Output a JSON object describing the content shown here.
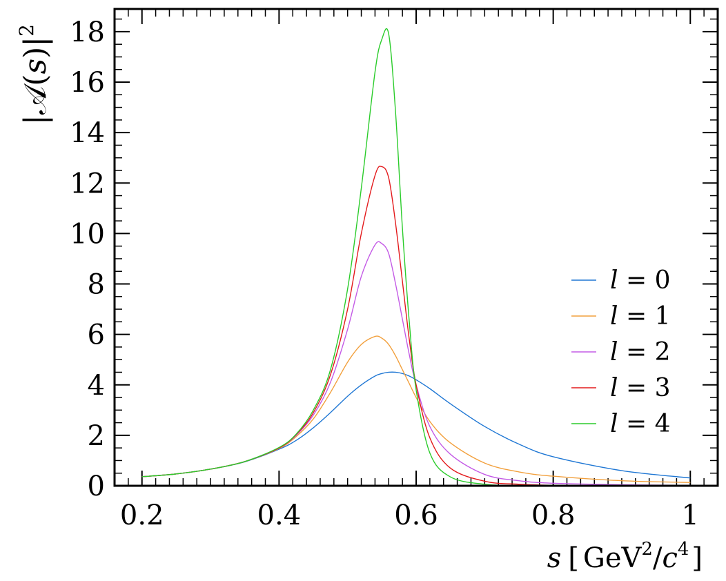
{
  "chart_data": {
    "type": "line",
    "xlabel": {
      "var": "s",
      "open": "[",
      "unit_base": "GeV",
      "unit_exp": "2",
      "slash": "/",
      "unit_c": "c",
      "unit_c_exp": "4",
      "close": "]"
    },
    "ylabel": {
      "bar_left": "|",
      "script": "𝒜",
      "paren_open": "(",
      "var": "s",
      "paren_close": ")",
      "bar_right": "|",
      "exp": "2"
    },
    "xlim": [
      0.16,
      1.04
    ],
    "ylim": [
      0,
      18.9
    ],
    "x_ticks": [
      "0.2",
      "0.4",
      "0.6",
      "0.8",
      "1"
    ],
    "x_tick_values": [
      0.2,
      0.4,
      0.6,
      0.8,
      1.0
    ],
    "y_ticks": [
      "0",
      "2",
      "4",
      "6",
      "8",
      "10",
      "12",
      "14",
      "16",
      "18"
    ],
    "y_tick_values": [
      0,
      2,
      4,
      6,
      8,
      10,
      12,
      14,
      16,
      18
    ],
    "legend_position": "right",
    "grid": false,
    "x": [
      0.2,
      0.25,
      0.3,
      0.35,
      0.4,
      0.425,
      0.45,
      0.475,
      0.5,
      0.52,
      0.54,
      0.55,
      0.56,
      0.57,
      0.58,
      0.59,
      0.6,
      0.62,
      0.65,
      0.7,
      0.75,
      0.8,
      0.9,
      1.0
    ],
    "series": [
      {
        "name": "l = 0",
        "color": "#1f77d4",
        "values": [
          0.36,
          0.47,
          0.66,
          0.95,
          1.45,
          1.8,
          2.3,
          2.9,
          3.55,
          4.0,
          4.35,
          4.45,
          4.5,
          4.5,
          4.45,
          4.35,
          4.2,
          3.85,
          3.25,
          2.35,
          1.65,
          1.15,
          0.6,
          0.31
        ]
      },
      {
        "name": "l = 1",
        "color": "#f2a03d",
        "values": [
          0.36,
          0.47,
          0.66,
          0.96,
          1.48,
          1.95,
          2.65,
          3.7,
          4.9,
          5.6,
          5.92,
          5.85,
          5.6,
          5.15,
          4.6,
          4.05,
          3.5,
          2.55,
          1.7,
          0.9,
          0.55,
          0.38,
          0.2,
          0.13
        ]
      },
      {
        "name": "l = 2",
        "color": "#c45be6",
        "values": [
          0.36,
          0.47,
          0.66,
          0.96,
          1.5,
          2.0,
          2.8,
          4.1,
          6.2,
          8.3,
          9.55,
          9.6,
          9.2,
          8.0,
          6.6,
          5.2,
          4.0,
          2.35,
          1.25,
          0.45,
          0.2,
          0.1,
          0.04,
          0.02
        ]
      },
      {
        "name": "l = 3",
        "color": "#e31a1c",
        "values": [
          0.36,
          0.47,
          0.66,
          0.96,
          1.5,
          2.03,
          2.9,
          4.4,
          7.0,
          10.0,
          12.3,
          12.65,
          12.2,
          10.4,
          8.1,
          5.8,
          4.0,
          1.9,
          0.7,
          0.18,
          0.06,
          0.02,
          0.0,
          0.0
        ]
      },
      {
        "name": "l = 4",
        "color": "#2bcc2b",
        "values": [
          0.36,
          0.47,
          0.66,
          0.96,
          1.52,
          2.05,
          3.0,
          4.6,
          7.8,
          11.8,
          16.4,
          17.7,
          17.9,
          14.8,
          10.2,
          6.5,
          3.8,
          1.3,
          0.35,
          0.06,
          0.01,
          0.0,
          0.0,
          0.0
        ]
      }
    ]
  }
}
